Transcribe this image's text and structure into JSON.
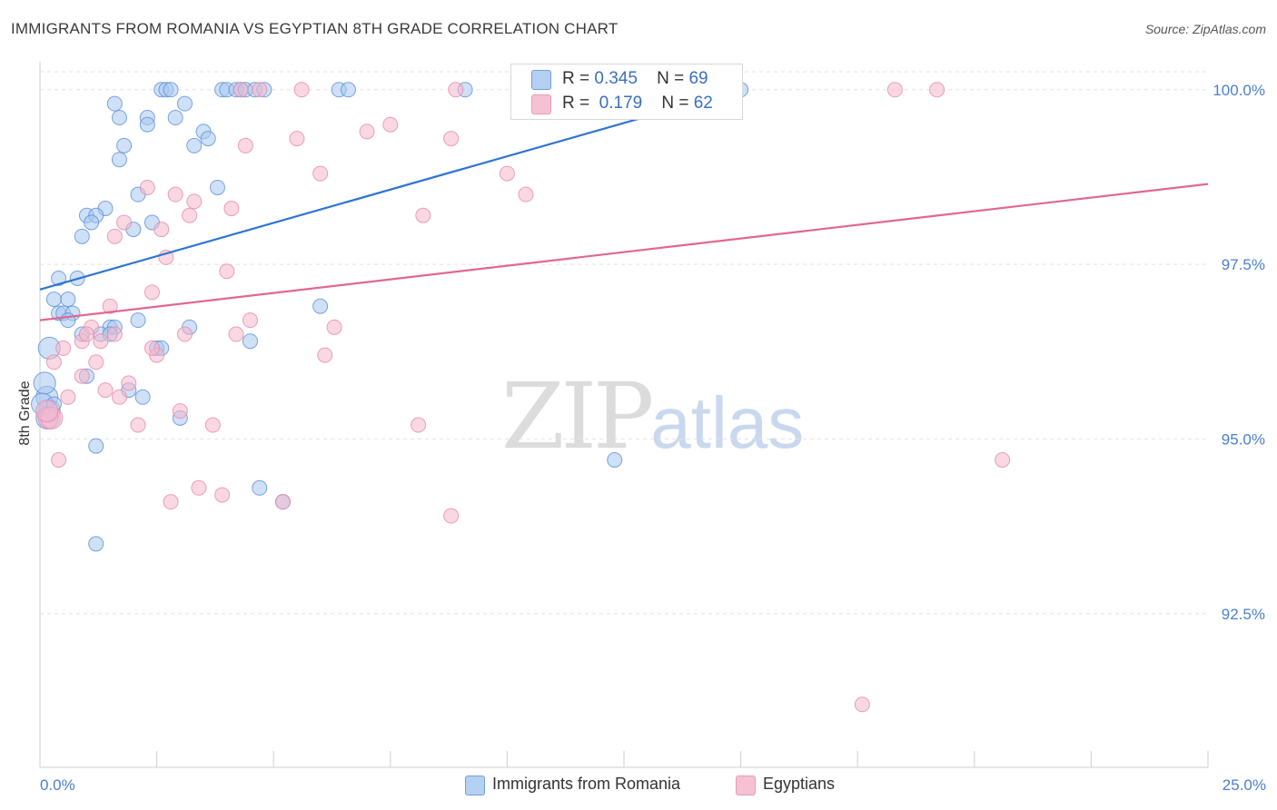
{
  "header": {
    "title": "IMMIGRANTS FROM ROMANIA VS EGYPTIAN 8TH GRADE CORRELATION CHART",
    "source": "Source: ZipAtlas.com"
  },
  "watermark": {
    "zip": "ZIP",
    "atlas": "atlas"
  },
  "legend_top": {
    "rows": [
      {
        "r_label": "R =",
        "r_value": "0.345",
        "n_label": "N =",
        "n_value": "69",
        "color": "#a8c8f0"
      },
      {
        "r_label": "R =",
        "r_value": "0.179",
        "n_label": "N =",
        "n_value": "62",
        "color": "#f5b8cc"
      }
    ]
  },
  "legend_bottom": {
    "items": [
      {
        "label": "Immigrants from Romania",
        "color": "#a8c8f0"
      },
      {
        "label": "Egyptians",
        "color": "#f5b8cc"
      }
    ]
  },
  "colors": {
    "blue_fill": "#a8c8f0",
    "blue_stroke": "#5b8fd6",
    "blue_line": "#2f74d0",
    "pink_fill": "#f5b8cc",
    "pink_stroke": "#e68aa8",
    "pink_line": "#e06890",
    "tick_text": "#4a7fd0",
    "grid": "#e2e2e2",
    "axis": "#cfcfcf"
  },
  "chart_data": {
    "type": "scatter",
    "title": "IMMIGRANTS FROM ROMANIA VS EGYPTIAN 8TH GRADE CORRELATION CHART",
    "xlabel": "",
    "ylabel": "8th Grade",
    "xlim": [
      0,
      25
    ],
    "ylim": [
      90.3,
      100.4
    ],
    "x_tick_labels": [
      {
        "value": 0,
        "label": "0.0%"
      },
      {
        "value": 25,
        "label": "25.0%"
      }
    ],
    "y_tick_labels": [
      {
        "value": 100,
        "label": "100.0%"
      },
      {
        "value": 97.5,
        "label": "97.5%"
      },
      {
        "value": 95,
        "label": "95.0%"
      },
      {
        "value": 92.5,
        "label": "92.5%"
      }
    ],
    "x_minor_ticks": [
      0,
      2.5,
      5,
      7.5,
      10,
      12.5,
      15,
      17.5,
      20,
      22.5,
      25
    ],
    "series": [
      {
        "name": "Immigrants from Romania",
        "R": 0.345,
        "N": 69,
        "trend": {
          "x": [
            0,
            15
          ],
          "y": [
            97.14,
            100.0
          ]
        },
        "points": [
          [
            2.6,
            100
          ],
          [
            2.7,
            100
          ],
          [
            2.8,
            100
          ],
          [
            3.9,
            100
          ],
          [
            4.0,
            100
          ],
          [
            4.2,
            100
          ],
          [
            4.3,
            100
          ],
          [
            4.4,
            100
          ],
          [
            4.6,
            100
          ],
          [
            4.8,
            100
          ],
          [
            6.4,
            100
          ],
          [
            6.6,
            100
          ],
          [
            9.1,
            100
          ],
          [
            15.0,
            100
          ],
          [
            1.6,
            99.8
          ],
          [
            3.1,
            99.8
          ],
          [
            1.7,
            99.6
          ],
          [
            2.3,
            99.6
          ],
          [
            2.9,
            99.6
          ],
          [
            2.3,
            99.5
          ],
          [
            3.5,
            99.4
          ],
          [
            3.6,
            99.3
          ],
          [
            1.8,
            99.2
          ],
          [
            3.3,
            99.2
          ],
          [
            1.7,
            99.0
          ],
          [
            3.8,
            98.6
          ],
          [
            2.1,
            98.5
          ],
          [
            1.4,
            98.3
          ],
          [
            1.0,
            98.2
          ],
          [
            1.2,
            98.2
          ],
          [
            1.1,
            98.1
          ],
          [
            2.4,
            98.1
          ],
          [
            2.0,
            98.0
          ],
          [
            0.9,
            97.9
          ],
          [
            0.4,
            97.3
          ],
          [
            0.8,
            97.3
          ],
          [
            0.3,
            97.0
          ],
          [
            0.6,
            97.0
          ],
          [
            6.0,
            96.9
          ],
          [
            0.4,
            96.8
          ],
          [
            0.5,
            96.8
          ],
          [
            0.7,
            96.8
          ],
          [
            0.6,
            96.7
          ],
          [
            2.1,
            96.7
          ],
          [
            1.5,
            96.6
          ],
          [
            1.6,
            96.6
          ],
          [
            3.2,
            96.6
          ],
          [
            0.9,
            96.5
          ],
          [
            1.3,
            96.5
          ],
          [
            1.5,
            96.5
          ],
          [
            4.5,
            96.4
          ],
          [
            0.2,
            96.3
          ],
          [
            2.5,
            96.3
          ],
          [
            2.6,
            96.3
          ],
          [
            1.0,
            95.9
          ],
          [
            1.9,
            95.7
          ],
          [
            0.15,
            95.6
          ],
          [
            0.2,
            95.4
          ],
          [
            0.15,
            95.3
          ],
          [
            3.0,
            95.3
          ],
          [
            1.2,
            94.9
          ],
          [
            12.3,
            94.7
          ],
          [
            4.7,
            94.3
          ],
          [
            5.2,
            94.1
          ],
          [
            1.2,
            93.5
          ],
          [
            0.1,
            95.8
          ],
          [
            2.2,
            95.6
          ],
          [
            0.05,
            95.5
          ],
          [
            0.3,
            95.5
          ]
        ]
      },
      {
        "name": "Egyptians",
        "R": 0.179,
        "N": 62,
        "trend": {
          "x": [
            0,
            25
          ],
          "y": [
            96.7,
            98.65
          ]
        },
        "points": [
          [
            4.3,
            100
          ],
          [
            4.7,
            100
          ],
          [
            5.6,
            100
          ],
          [
            8.9,
            100
          ],
          [
            18.3,
            100
          ],
          [
            19.2,
            100
          ],
          [
            7.5,
            99.5
          ],
          [
            7.0,
            99.4
          ],
          [
            5.5,
            99.3
          ],
          [
            8.8,
            99.3
          ],
          [
            4.4,
            99.2
          ],
          [
            6.0,
            98.8
          ],
          [
            10.0,
            98.8
          ],
          [
            2.3,
            98.6
          ],
          [
            2.9,
            98.5
          ],
          [
            10.4,
            98.5
          ],
          [
            3.3,
            98.4
          ],
          [
            4.1,
            98.3
          ],
          [
            3.2,
            98.2
          ],
          [
            8.2,
            98.2
          ],
          [
            1.8,
            98.1
          ],
          [
            2.6,
            98.0
          ],
          [
            1.6,
            97.9
          ],
          [
            2.7,
            97.6
          ],
          [
            4.0,
            97.4
          ],
          [
            2.4,
            97.1
          ],
          [
            1.5,
            96.9
          ],
          [
            4.5,
            96.7
          ],
          [
            6.3,
            96.6
          ],
          [
            1.1,
            96.6
          ],
          [
            1.6,
            96.5
          ],
          [
            3.1,
            96.5
          ],
          [
            4.2,
            96.5
          ],
          [
            0.9,
            96.4
          ],
          [
            1.3,
            96.4
          ],
          [
            0.5,
            96.3
          ],
          [
            2.5,
            96.2
          ],
          [
            6.1,
            96.2
          ],
          [
            0.3,
            96.1
          ],
          [
            1.2,
            96.1
          ],
          [
            0.9,
            95.9
          ],
          [
            1.9,
            95.8
          ],
          [
            1.4,
            95.7
          ],
          [
            0.6,
            95.6
          ],
          [
            1.7,
            95.6
          ],
          [
            3.0,
            95.4
          ],
          [
            0.2,
            95.3
          ],
          [
            2.1,
            95.2
          ],
          [
            3.7,
            95.2
          ],
          [
            8.1,
            95.2
          ],
          [
            0.4,
            94.7
          ],
          [
            20.6,
            94.7
          ],
          [
            3.4,
            94.3
          ],
          [
            3.9,
            94.2
          ],
          [
            2.8,
            94.1
          ],
          [
            5.2,
            94.1
          ],
          [
            8.8,
            93.9
          ],
          [
            17.6,
            91.2
          ],
          [
            0.25,
            95.3
          ],
          [
            0.15,
            95.4
          ],
          [
            1.0,
            96.5
          ],
          [
            2.4,
            96.3
          ]
        ]
      }
    ]
  }
}
